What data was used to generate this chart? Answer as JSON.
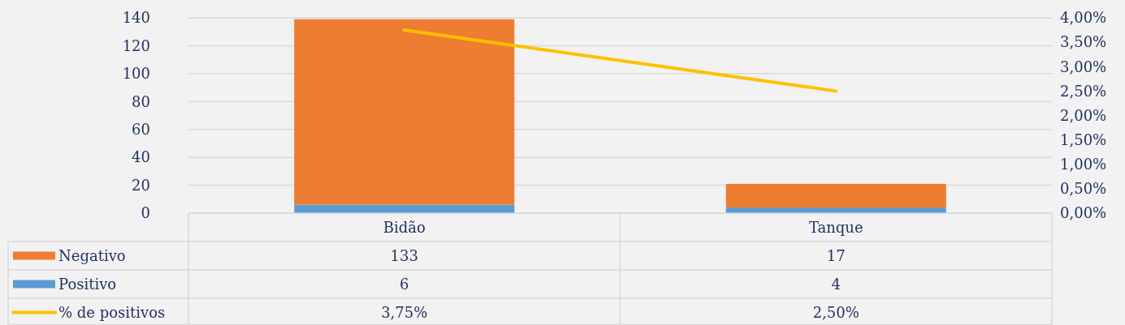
{
  "chart_data": {
    "type": "bar",
    "stacked": true,
    "categories": [
      "Bidão",
      "Tanque"
    ],
    "series": [
      {
        "name": "Positivo",
        "color": "#5b9bd5",
        "values": [
          6,
          4
        ],
        "value_labels": [
          "6",
          "4"
        ]
      },
      {
        "name": "Negativo",
        "color": "#ed7d31",
        "values": [
          133,
          17
        ],
        "value_labels": [
          "133",
          "17"
        ]
      },
      {
        "name": "% de positivos",
        "type": "line",
        "axis": "y2",
        "color": "#ffc000",
        "values": [
          3.75,
          2.5
        ],
        "value_labels": [
          "3,75%",
          "2,50%"
        ]
      }
    ],
    "ylim": [
      0,
      140
    ],
    "yticks": [
      0,
      20,
      40,
      60,
      80,
      100,
      120,
      140
    ],
    "y2lim": [
      0,
      4
    ],
    "y2ticks": [
      {
        "value": 0,
        "label": "0,00%"
      },
      {
        "value": 0.5,
        "label": "0,50%"
      },
      {
        "value": 1,
        "label": "1,00%"
      },
      {
        "value": 1.5,
        "label": "1,50%"
      },
      {
        "value": 2,
        "label": "2,00%"
      },
      {
        "value": 2.5,
        "label": "2,50%"
      },
      {
        "value": 3,
        "label": "3,00%"
      },
      {
        "value": 3.5,
        "label": "3,50%"
      },
      {
        "value": 4,
        "label": "4,00%"
      }
    ],
    "grid": "y",
    "legend": "bottom"
  }
}
